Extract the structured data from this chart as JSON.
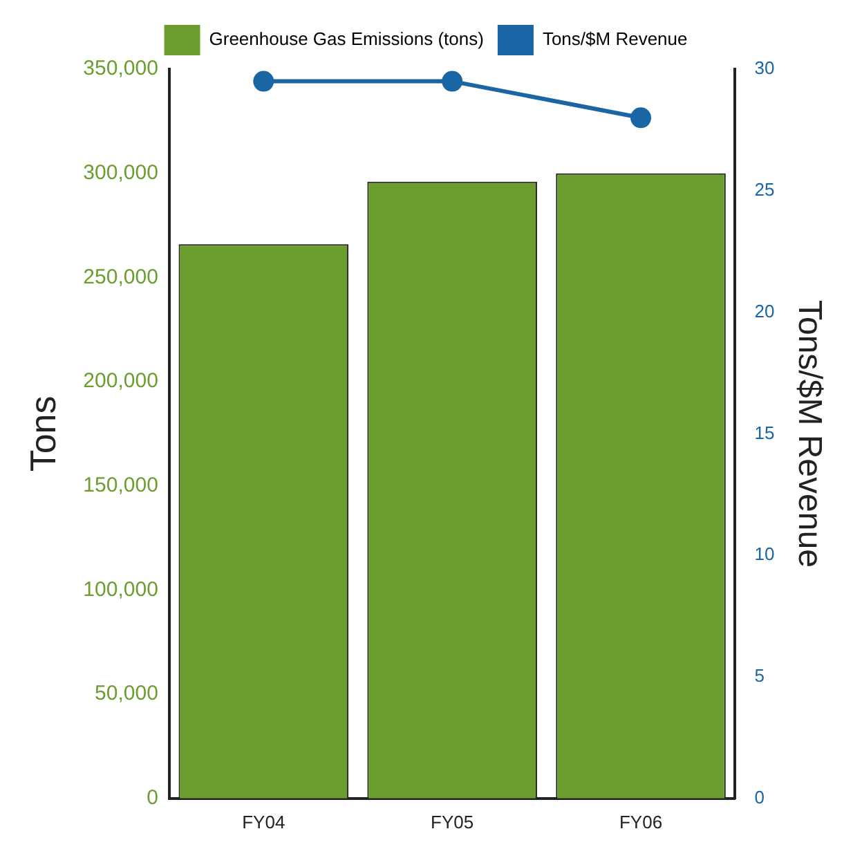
{
  "chart_data": {
    "type": "bar",
    "categories": [
      "FY04",
      "FY05",
      "FY06"
    ],
    "ylabel": "Tons",
    "y2label": "Tons/$M Revenue",
    "series": [
      {
        "name": "Greenhouse Gas Emissions (tons)",
        "color": "#6b9e2f",
        "values": [
          266000,
          296000,
          300000
        ]
      },
      {
        "name": "Tons/$M Revenue",
        "type": "line",
        "axis": "y2",
        "color": "#1a65a3",
        "values": [
          29.5,
          29.5,
          28
        ]
      }
    ],
    "ylim": [
      0,
      350000
    ],
    "yticks": [
      {
        "value": 0,
        "label": "0"
      },
      {
        "value": 50000,
        "label": "50,000"
      },
      {
        "value": 100000,
        "label": "100,000"
      },
      {
        "value": 150000,
        "label": "150,000"
      },
      {
        "value": 200000,
        "label": "200,000"
      },
      {
        "value": 250000,
        "label": "250,000"
      },
      {
        "value": 300000,
        "label": "300,000"
      },
      {
        "value": 350000,
        "label": "350,000"
      }
    ],
    "y2lim": [
      0,
      30
    ],
    "y2ticks": [
      0,
      5,
      10,
      15,
      20,
      25,
      30
    ],
    "grid": false,
    "legend": "top",
    "marker": "circle",
    "line_style": "solid"
  }
}
